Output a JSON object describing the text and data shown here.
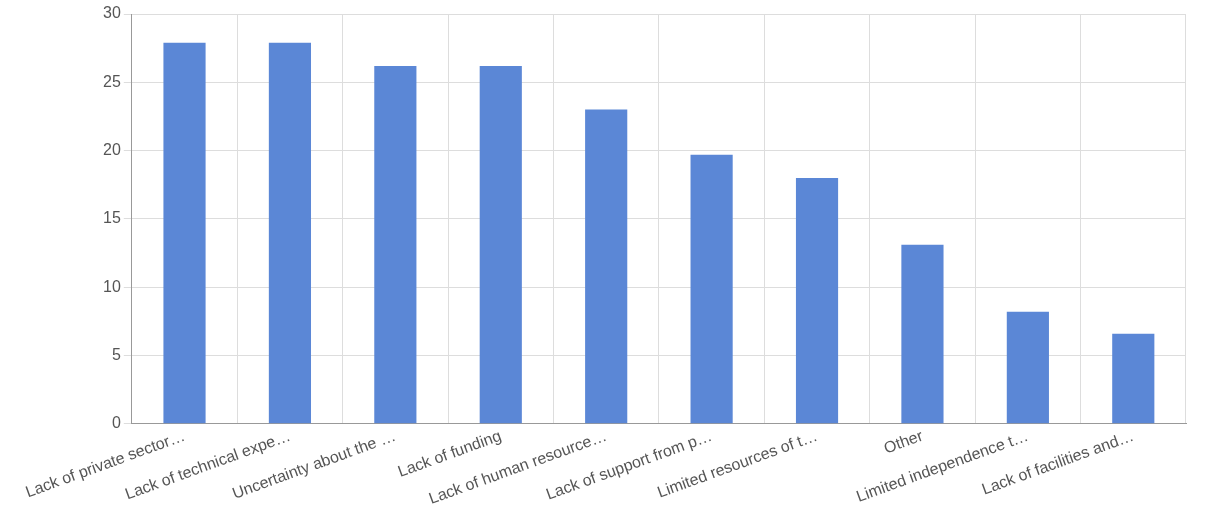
{
  "chart_data": {
    "type": "bar",
    "categories": [
      "Lack of private sector…",
      "Lack of technical expe…",
      "Uncertainty about the …",
      "Lack of funding",
      "Lack of human resource…",
      "Lack of support from p…",
      "Limited resources of t…",
      "Other",
      "Limited independence t…",
      "Lack of facilities and…"
    ],
    "values": [
      27.9,
      27.9,
      26.2,
      26.2,
      23,
      19.7,
      18,
      13.1,
      8.2,
      6.6
    ],
    "color": "#5b87d6",
    "ylim": [
      0,
      30
    ],
    "yticks": [
      0,
      5,
      10,
      15,
      20,
      25,
      30
    ],
    "grid": true
  }
}
